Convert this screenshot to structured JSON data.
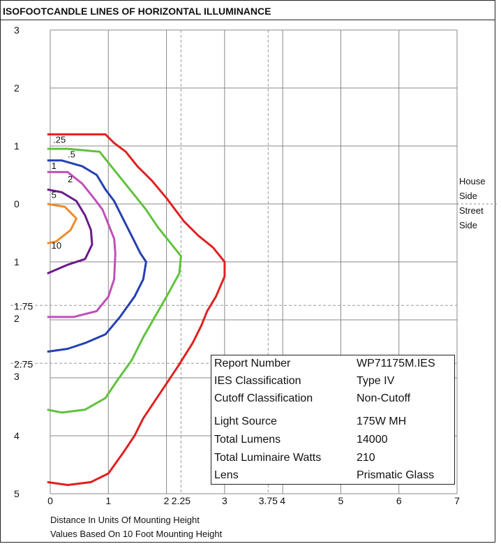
{
  "chart_data": {
    "type": "line",
    "title": "ISOFOOTCANDLE LINES OF HORIZONTAL ILLUMINANCE",
    "xlabel": "Distance In Units Of Mounting Height",
    "note": "Values Based On 10 Foot Mounting Height",
    "x_ticks": [
      {
        "value": 0,
        "label": "0"
      },
      {
        "value": 1,
        "label": "1"
      },
      {
        "value": 2,
        "label": "2"
      },
      {
        "value": 2.25,
        "label": "2.25"
      },
      {
        "value": 3,
        "label": "3"
      },
      {
        "value": 3.75,
        "label": "3.75"
      },
      {
        "value": 4,
        "label": "4"
      },
      {
        "value": 5,
        "label": "5"
      },
      {
        "value": 6,
        "label": "6"
      },
      {
        "value": 7,
        "label": "7"
      }
    ],
    "y_ticks": [
      {
        "value": -3,
        "label": "3"
      },
      {
        "value": -2,
        "label": "2"
      },
      {
        "value": -1,
        "label": "1"
      },
      {
        "value": 0,
        "label": "0"
      },
      {
        "value": 1,
        "label": "1"
      },
      {
        "value": 1.75,
        "label": "1.75"
      },
      {
        "value": 2,
        "label": "2"
      },
      {
        "value": 2.75,
        "label": "2.75"
      },
      {
        "value": 3,
        "label": "3"
      },
      {
        "value": 4,
        "label": "4"
      },
      {
        "value": 5,
        "label": "5"
      }
    ],
    "xlim": [
      0,
      7
    ],
    "ylim": [
      -3,
      5
    ],
    "grid": true,
    "dashed_x": [
      2.25,
      3.75
    ],
    "dashed_y": [
      1.75,
      2.75
    ],
    "side_labels": {
      "top": [
        "House",
        "Side"
      ],
      "bottom": [
        "Street",
        "Side"
      ]
    },
    "series": [
      {
        "name": ".25",
        "color": "#e02020",
        "points": [
          [
            -0.05,
            -1.2
          ],
          [
            0.3,
            -1.2
          ],
          [
            0.95,
            -1.2
          ],
          [
            1.1,
            -1.05
          ],
          [
            1.3,
            -0.9
          ],
          [
            1.5,
            -0.65
          ],
          [
            1.75,
            -0.4
          ],
          [
            2.0,
            -0.1
          ],
          [
            2.3,
            0.3
          ],
          [
            2.55,
            0.55
          ],
          [
            2.8,
            0.75
          ],
          [
            3.0,
            1.0
          ],
          [
            3.0,
            1.25
          ],
          [
            2.85,
            1.6
          ],
          [
            2.7,
            1.85
          ],
          [
            2.6,
            2.1
          ],
          [
            2.45,
            2.4
          ],
          [
            2.2,
            2.8
          ],
          [
            2.0,
            3.1
          ],
          [
            1.8,
            3.4
          ],
          [
            1.6,
            3.7
          ],
          [
            1.45,
            4.0
          ],
          [
            1.25,
            4.3
          ],
          [
            1.0,
            4.65
          ],
          [
            0.7,
            4.8
          ],
          [
            0.3,
            4.85
          ],
          [
            -0.05,
            4.8
          ]
        ]
      },
      {
        "name": ".5",
        "color": "#5fc23c",
        "points": [
          [
            -0.05,
            -0.95
          ],
          [
            0.3,
            -0.95
          ],
          [
            0.85,
            -0.9
          ],
          [
            1.05,
            -0.65
          ],
          [
            1.25,
            -0.4
          ],
          [
            1.45,
            -0.15
          ],
          [
            1.65,
            0.1
          ],
          [
            1.85,
            0.4
          ],
          [
            2.05,
            0.65
          ],
          [
            2.25,
            0.9
          ],
          [
            2.22,
            1.2
          ],
          [
            2.0,
            1.6
          ],
          [
            1.8,
            1.95
          ],
          [
            1.6,
            2.3
          ],
          [
            1.4,
            2.7
          ],
          [
            1.15,
            3.05
          ],
          [
            0.95,
            3.35
          ],
          [
            0.6,
            3.55
          ],
          [
            0.2,
            3.6
          ],
          [
            -0.05,
            3.55
          ]
        ]
      },
      {
        "name": "1",
        "color": "#2540b0",
        "points": [
          [
            -0.05,
            -0.75
          ],
          [
            0.2,
            -0.75
          ],
          [
            0.55,
            -0.65
          ],
          [
            0.8,
            -0.5
          ],
          [
            0.95,
            -0.25
          ],
          [
            1.1,
            -0.05
          ],
          [
            1.25,
            0.25
          ],
          [
            1.4,
            0.55
          ],
          [
            1.55,
            0.85
          ],
          [
            1.65,
            1.0
          ],
          [
            1.6,
            1.3
          ],
          [
            1.45,
            1.6
          ],
          [
            1.2,
            1.95
          ],
          [
            0.95,
            2.25
          ],
          [
            0.6,
            2.4
          ],
          [
            0.3,
            2.5
          ],
          [
            -0.05,
            2.55
          ]
        ]
      },
      {
        "name": "2",
        "color": "#c050b8",
        "points": [
          [
            -0.05,
            -0.55
          ],
          [
            0.3,
            -0.55
          ],
          [
            0.55,
            -0.35
          ],
          [
            0.75,
            -0.1
          ],
          [
            0.9,
            0.1
          ],
          [
            1.0,
            0.35
          ],
          [
            1.1,
            0.6
          ],
          [
            1.12,
            0.85
          ],
          [
            1.1,
            1.3
          ],
          [
            1.0,
            1.6
          ],
          [
            0.8,
            1.85
          ],
          [
            0.4,
            1.95
          ],
          [
            -0.05,
            1.95
          ]
        ]
      },
      {
        "name": "5",
        "color": "#6a1a8a",
        "points": [
          [
            -0.05,
            -0.25
          ],
          [
            0.2,
            -0.2
          ],
          [
            0.45,
            -0.05
          ],
          [
            0.6,
            0.2
          ],
          [
            0.7,
            0.45
          ],
          [
            0.72,
            0.7
          ],
          [
            0.6,
            0.95
          ],
          [
            0.3,
            1.05
          ],
          [
            -0.05,
            1.2
          ]
        ]
      },
      {
        "name": "10",
        "color": "#f08a2a",
        "points": [
          [
            -0.05,
            0.0
          ],
          [
            0.25,
            0.05
          ],
          [
            0.45,
            0.25
          ],
          [
            0.35,
            0.45
          ],
          [
            0.1,
            0.65
          ],
          [
            -0.05,
            0.68
          ]
        ]
      }
    ],
    "contour_labels": [
      {
        "text": ".25",
        "x": 0.05,
        "y": -1.1
      },
      {
        "text": ".5",
        "x": 0.3,
        "y": -0.85
      },
      {
        "text": "1",
        "x": 0.02,
        "y": -0.65
      },
      {
        "text": "2",
        "x": 0.3,
        "y": -0.42
      },
      {
        "text": "5",
        "x": 0.02,
        "y": -0.15
      },
      {
        "text": "10",
        "x": 0.02,
        "y": 0.72
      }
    ]
  },
  "report": {
    "rows": [
      {
        "key": "Report Number",
        "value": "WP71175M.IES"
      },
      {
        "key": "IES Classification",
        "value": "Type IV"
      },
      {
        "key": "Cutoff Classification",
        "value": "Non-Cutoff"
      },
      {
        "key": "Light Source",
        "value": "175W MH"
      },
      {
        "key": "Total Lumens",
        "value": "14000"
      },
      {
        "key": "Total Luminaire Watts",
        "value": "210"
      },
      {
        "key": "Lens",
        "value": "Prismatic Glass"
      }
    ]
  }
}
